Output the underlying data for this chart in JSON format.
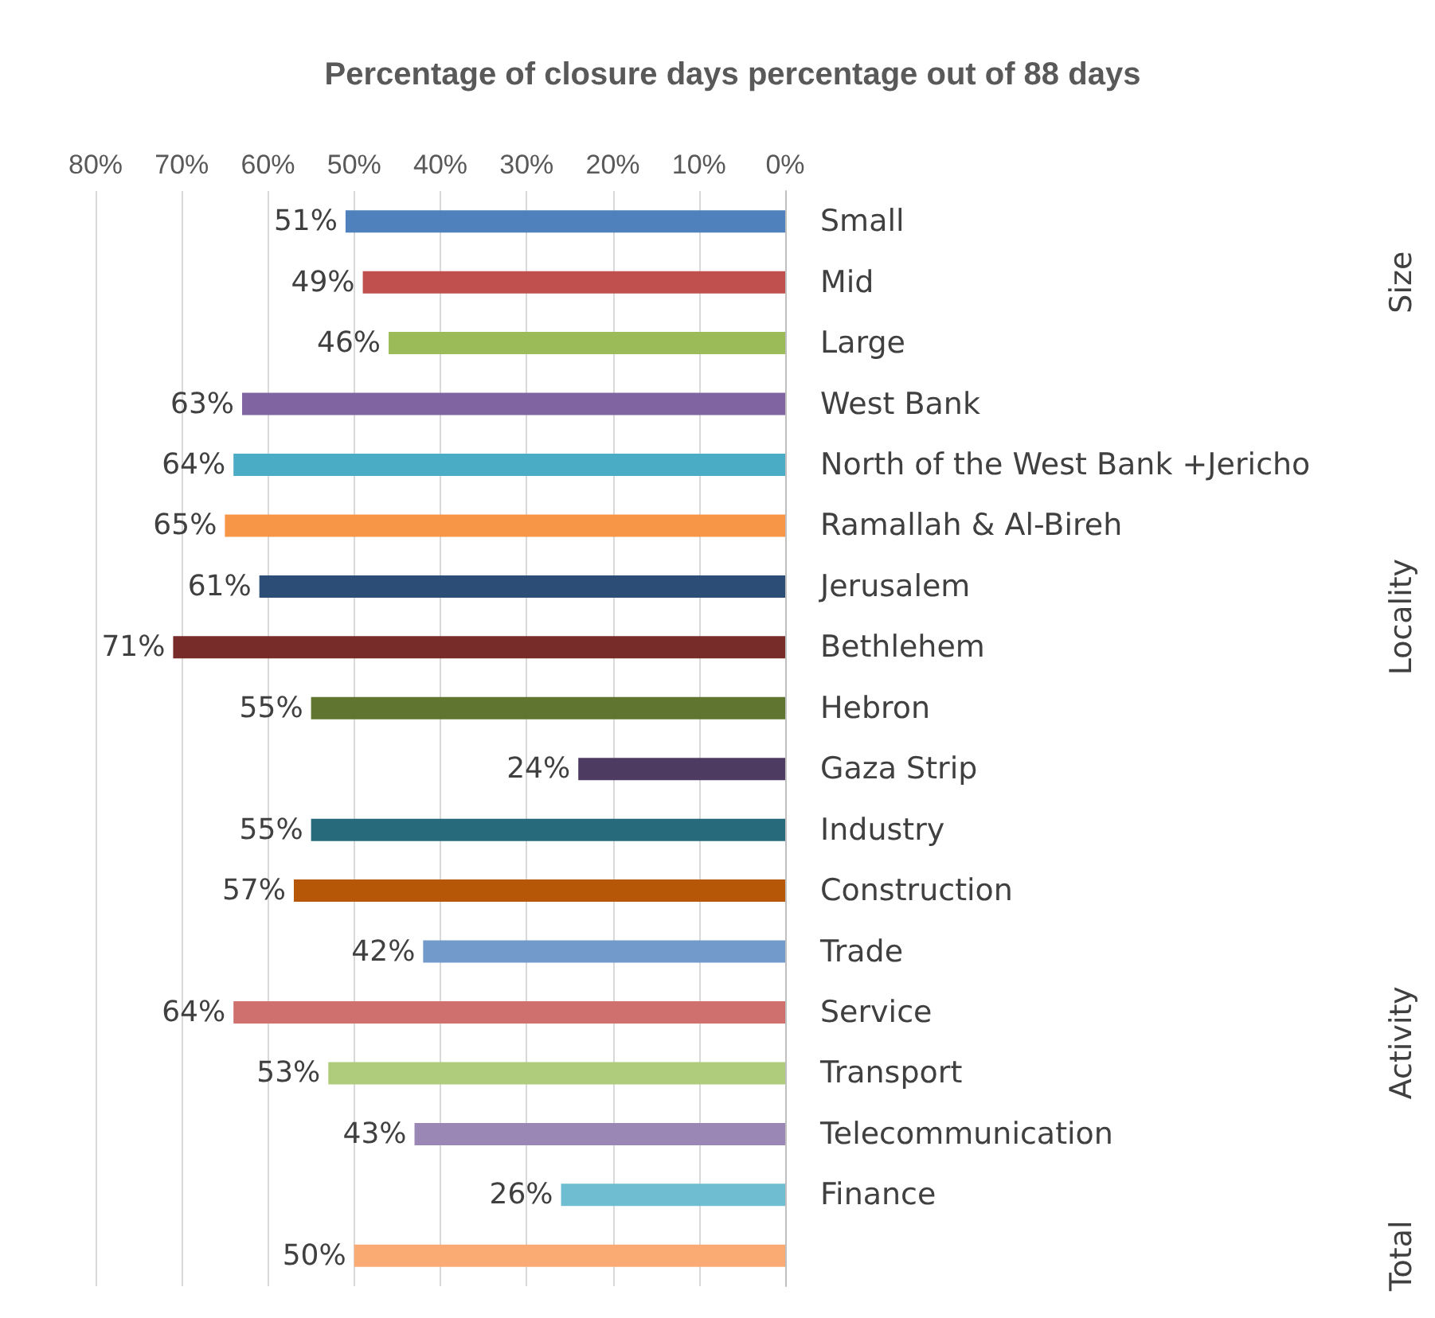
{
  "chart_data": {
    "type": "bar",
    "orientation": "horizontal",
    "title": "Percentage of closure days percentage out of 88 days",
    "categories": [
      "Small",
      "Mid",
      "Large",
      "West Bank",
      "North of the West Bank +Jericho",
      "Ramallah & Al-Bireh",
      "Jerusalem",
      "Bethlehem",
      "Hebron",
      "Gaza Strip",
      "Industry",
      "Construction",
      "Trade",
      "Service",
      "Transport",
      "Telecommunication",
      "Finance",
      null
    ],
    "values": [
      51,
      49,
      46,
      63,
      64,
      65,
      61,
      71,
      55,
      24,
      55,
      57,
      42,
      64,
      53,
      43,
      26,
      50
    ],
    "value_labels": [
      "51%",
      "49%",
      "46%",
      "63%",
      "64%",
      "65%",
      "61%",
      "71%",
      "55%",
      "24%",
      "55%",
      "57%",
      "42%",
      "64%",
      "53%",
      "43%",
      "26%",
      "50%"
    ],
    "colors": [
      "#4f81bd",
      "#c0504d",
      "#9bbb59",
      "#8064a2",
      "#4bacc6",
      "#f79646",
      "#2c4d75",
      "#772c2a",
      "#5f7530",
      "#4d3b62",
      "#276a7c",
      "#b65708",
      "#729aca",
      "#d0706e",
      "#afcb7c",
      "#9b87b5",
      "#6fbdd1",
      "#f9ab73"
    ],
    "xlim": [
      80,
      0
    ],
    "xticks": [
      {
        "value": 80,
        "label": "80%"
      },
      {
        "value": 70,
        "label": "70%"
      },
      {
        "value": 60,
        "label": "60%"
      },
      {
        "value": 50,
        "label": "50%"
      },
      {
        "value": 40,
        "label": "40%"
      },
      {
        "value": 30,
        "label": "30%"
      },
      {
        "value": 20,
        "label": "20%"
      },
      {
        "value": 10,
        "label": "10%"
      },
      {
        "value": 0,
        "label": "0%"
      }
    ],
    "grid": "x",
    "annotations": [
      "Size",
      "Locality",
      "Activity",
      "Total"
    ]
  }
}
